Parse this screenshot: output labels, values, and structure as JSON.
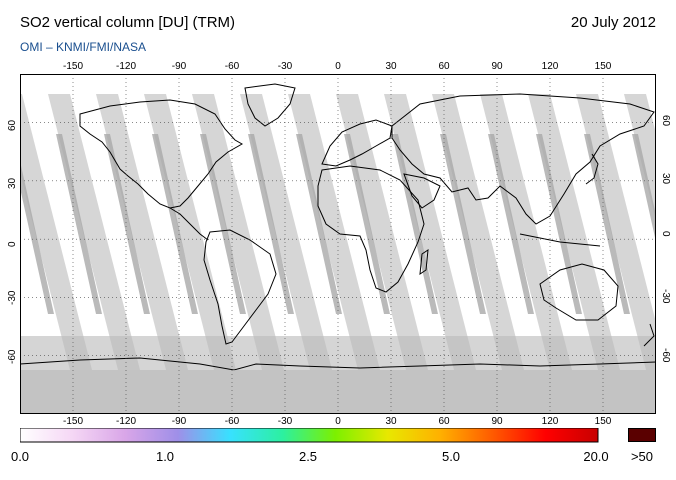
{
  "header": {
    "title": "SO2 vertical column [DU] (TRM)",
    "date": "20 July 2012",
    "source": "OMI  –  KNMI/FMI/NASA"
  },
  "map": {
    "longitude_ticks": [
      "-150",
      "-120",
      "-90",
      "-60",
      "-30",
      "0",
      "30",
      "60",
      "90",
      "120",
      "150"
    ],
    "latitude_ticks": [
      "60",
      "30",
      "0",
      "-30",
      "-60"
    ],
    "colors": {
      "ocean": "#ffffff",
      "swath_gap": "#cfcfcf",
      "swath_dark": "#a9a9a9",
      "polar_night": "#b9b9b9",
      "coastline": "#000000",
      "grid": "#444444"
    }
  },
  "colorbar": {
    "labels": [
      "0.0",
      "1.0",
      "2.5",
      "5.0",
      "20.0"
    ],
    "over_label": ">50",
    "gradient": [
      "#ffffff",
      "#f5d7f5",
      "#d9a6e8",
      "#9f8fe8",
      "#38e1ff",
      "#2cf0a0",
      "#7cf000",
      "#e8e800",
      "#ffb000",
      "#ff5a00",
      "#ff0000",
      "#c80000"
    ],
    "over_color": "#5a0000"
  }
}
